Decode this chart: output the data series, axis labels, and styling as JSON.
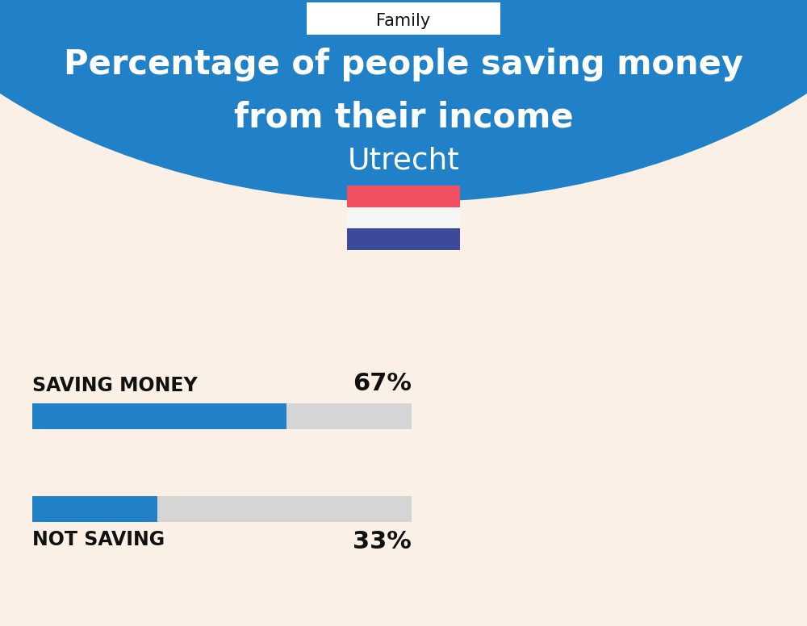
{
  "title_line1": "Percentage of people saving money",
  "title_line2": "from their income",
  "subtitle": "Utrecht",
  "tab_label": "Family",
  "background_color": "#FAF0E6",
  "header_color": "#2080C8",
  "bar_active_color": "#2080C8",
  "bar_inactive_color": "#D5D5D5",
  "saving_label": "SAVING MONEY",
  "saving_value": 67,
  "saving_pct_label": "67%",
  "not_saving_label": "NOT SAVING",
  "not_saving_value": 33,
  "not_saving_pct_label": "33%",
  "flag_red": "#F05060",
  "flag_white": "#F5F5F5",
  "flag_blue": "#3D4A9A",
  "text_color_dark": "#111111",
  "text_color_white": "#FFFFFF",
  "title_fontsize": 30,
  "subtitle_fontsize": 27,
  "label_fontsize": 17,
  "pct_fontsize": 22,
  "tab_fontsize": 15
}
